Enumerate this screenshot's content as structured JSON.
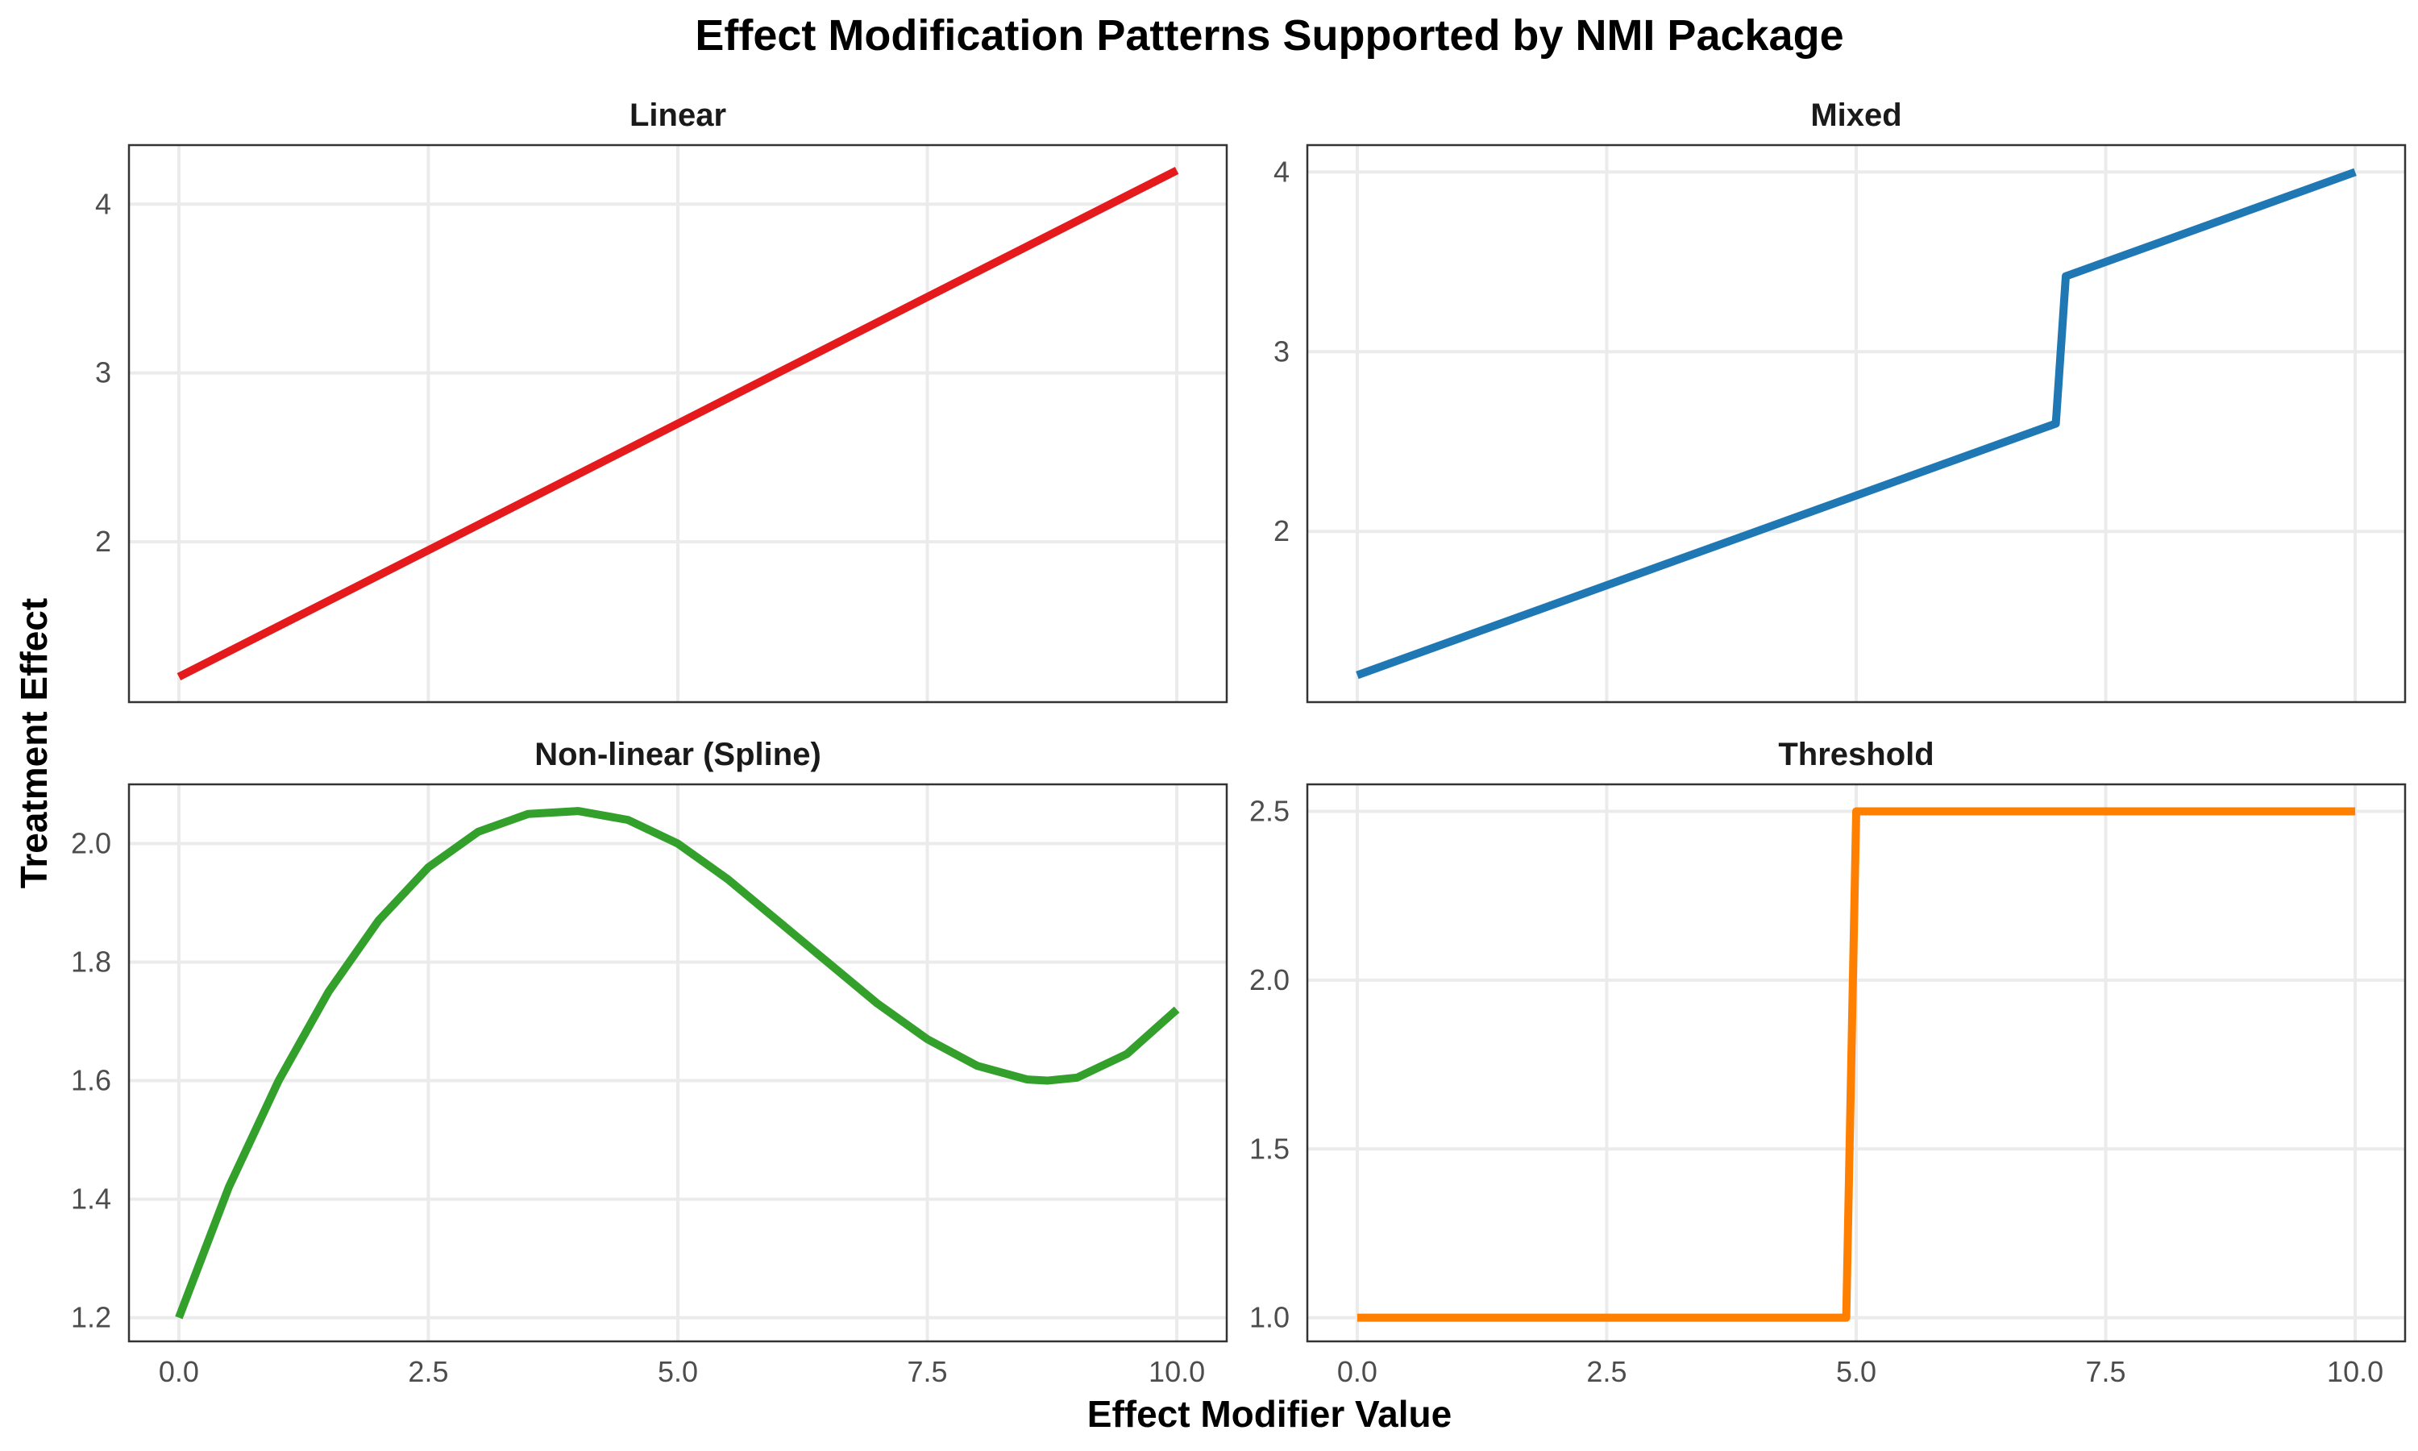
{
  "title": "Effect Modification Patterns Supported by NMI Package",
  "xlabel": "Effect Modifier Value",
  "ylabel": "Treatment Effect",
  "chart_data": [
    {
      "type": "line",
      "title": "Linear",
      "color": "#E41A1C",
      "xlim": [
        -0.5,
        10.5
      ],
      "ylim": [
        1.05,
        4.35
      ],
      "xticks": [
        0,
        2.5,
        5,
        7.5,
        10
      ],
      "xtick_labels": [
        "0.0",
        "2.5",
        "5.0",
        "7.5",
        "10.0"
      ],
      "yticks": [
        2,
        3,
        4
      ],
      "ytick_labels": [
        "2",
        "3",
        "4"
      ],
      "x": [
        0,
        10
      ],
      "y": [
        1.2,
        4.2
      ]
    },
    {
      "type": "line",
      "title": "Mixed",
      "color": "#1F78B4",
      "xlim": [
        -0.5,
        10.5
      ],
      "ylim": [
        1.05,
        4.15
      ],
      "xticks": [
        0,
        2.5,
        5,
        7.5,
        10
      ],
      "xtick_labels": [
        "0.0",
        "2.5",
        "5.0",
        "7.5",
        "10.0"
      ],
      "yticks": [
        2,
        3,
        4
      ],
      "ytick_labels": [
        "2",
        "3",
        "4"
      ],
      "x": [
        0,
        7,
        7.1,
        10
      ],
      "y": [
        1.2,
        2.6,
        3.42,
        4.0
      ]
    },
    {
      "type": "line",
      "title": "Non-linear (Spline)",
      "color": "#33A02C",
      "xlim": [
        -0.5,
        10.5
      ],
      "ylim": [
        1.16,
        2.1
      ],
      "xticks": [
        0,
        2.5,
        5,
        7.5,
        10
      ],
      "xtick_labels": [
        "0.0",
        "2.5",
        "5.0",
        "7.5",
        "10.0"
      ],
      "yticks": [
        1.2,
        1.4,
        1.6,
        1.8,
        2.0
      ],
      "ytick_labels": [
        "1.2",
        "1.4",
        "1.6",
        "1.8",
        "2.0"
      ],
      "x": [
        0,
        0.5,
        1,
        1.5,
        2,
        2.5,
        3,
        3.5,
        4,
        4.5,
        5,
        5.5,
        6,
        6.5,
        7,
        7.5,
        8,
        8.5,
        8.7,
        9,
        9.5,
        10
      ],
      "y": [
        1.2,
        1.42,
        1.6,
        1.75,
        1.87,
        1.96,
        2.02,
        2.05,
        2.055,
        2.04,
        2.0,
        1.94,
        1.87,
        1.8,
        1.73,
        1.67,
        1.625,
        1.602,
        1.6,
        1.605,
        1.645,
        1.72
      ]
    },
    {
      "type": "line",
      "title": "Threshold",
      "color": "#FF7F00",
      "xlim": [
        -0.5,
        10.5
      ],
      "ylim": [
        0.93,
        2.58
      ],
      "xticks": [
        0,
        2.5,
        5,
        7.5,
        10
      ],
      "xtick_labels": [
        "0.0",
        "2.5",
        "5.0",
        "7.5",
        "10.0"
      ],
      "yticks": [
        1.0,
        1.5,
        2.0,
        2.5
      ],
      "ytick_labels": [
        "1.0",
        "1.5",
        "2.0",
        "2.5"
      ],
      "x": [
        0,
        4.9,
        5.0,
        10
      ],
      "y": [
        1.0,
        1.0,
        2.5,
        2.5
      ]
    }
  ]
}
